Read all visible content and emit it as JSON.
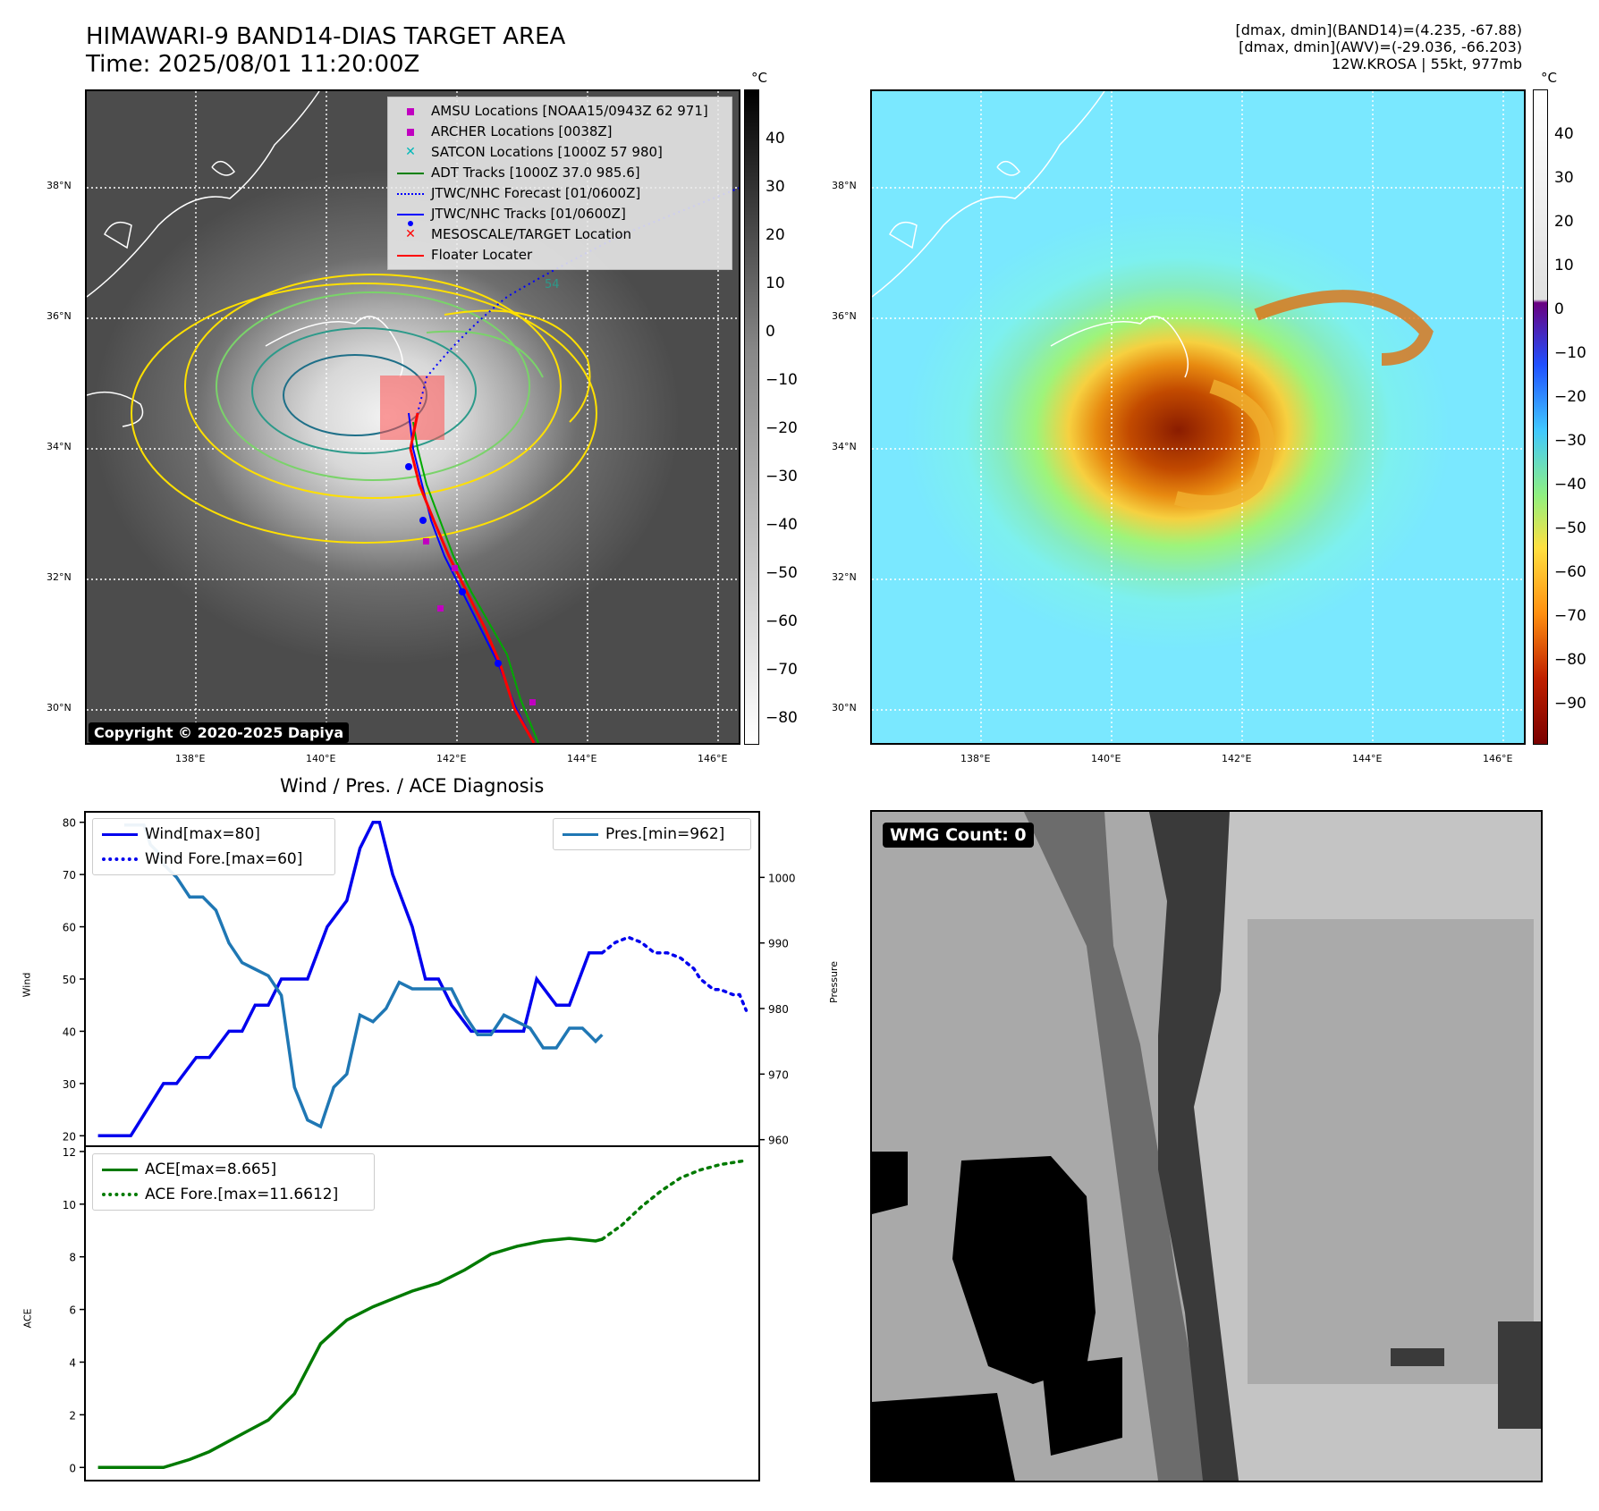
{
  "header": {
    "title_line1": "HIMAWARI-9 BAND14-DIAS TARGET AREA",
    "title_line2": "Time: 2025/08/01 11:20:00Z",
    "info_line1": "[dmax, dmin](BAND14)=(4.235, -67.88)",
    "info_line2": "[dmax, dmin](AWV)=(-29.036, -66.203)",
    "info_line3": "12W.KROSA | 55kt, 977mb"
  },
  "map": {
    "lon_ticks": [
      "138°E",
      "140°E",
      "142°E",
      "144°E",
      "146°E"
    ],
    "lat_ticks": [
      "38°N",
      "36°N",
      "34°N",
      "32°N",
      "30°N"
    ],
    "copyright": "Copyright © 2020-2025 Dapiya",
    "colorbar_unit": "°C",
    "colorbar1_ticks": [
      "40",
      "30",
      "20",
      "10",
      "0",
      "−10",
      "−20",
      "−30",
      "−40",
      "−50",
      "−60",
      "−70",
      "−80"
    ],
    "colorbar2_ticks": [
      "40",
      "30",
      "20",
      "10",
      "0",
      "−10",
      "−20",
      "−30",
      "−40",
      "−50",
      "−60",
      "−70",
      "−80",
      "−90"
    ],
    "contour_label": "54",
    "legend": [
      {
        "label": "AMSU Locations [NOAA15/0943Z 62 971]",
        "symbol": "square",
        "color": "#c000c0"
      },
      {
        "label": "ARCHER Locations [0038Z]",
        "symbol": "square",
        "color": "#c000c0"
      },
      {
        "label": "SATCON Locations [1000Z 57 980]",
        "symbol": "x",
        "color": "#00b8b8"
      },
      {
        "label": "ADT Tracks [1000Z 37.0 985.6]",
        "symbol": "line",
        "color": "#008000"
      },
      {
        "label": "JTWC/NHC Forecast [01/0600Z]",
        "symbol": "dotted",
        "color": "#0000ff"
      },
      {
        "label": "JTWC/NHC Tracks [01/0600Z]",
        "symbol": "line-dot",
        "color": "#0000ff"
      },
      {
        "label": "MESOSCALE/TARGET Location",
        "symbol": "x",
        "color": "#ff0000"
      },
      {
        "label": "Floater Locater",
        "symbol": "line",
        "color": "#ff0000"
      }
    ]
  },
  "diagnosis": {
    "title": "Wind / Pres. / ACE Diagnosis",
    "wind_ylabel": "Wind",
    "pres_ylabel": "Pressure",
    "ace_ylabel": "ACE",
    "wind_legend": [
      "Wind[max=80]",
      "Wind Fore.[max=60]"
    ],
    "pres_legend": "Pres.[min=962]",
    "ace_legend": [
      "ACE[max=8.665]",
      "ACE Fore.[max=11.6612]"
    ]
  },
  "wmg": {
    "label": "WMG Count: 0"
  },
  "colors": {
    "wind": "#0000ee",
    "pressure": "#1f77b4",
    "ace": "#007a00"
  },
  "chart_data": [
    {
      "type": "line",
      "ylabel": "Wind",
      "ylim": [
        18,
        82
      ],
      "yticks": [
        20,
        30,
        40,
        50,
        60,
        70,
        80
      ],
      "x": [
        0,
        1,
        2,
        3,
        4,
        5,
        6,
        7,
        8,
        9,
        10,
        11,
        12,
        13,
        14,
        15,
        16,
        17,
        18,
        19,
        20,
        21,
        22,
        23,
        24,
        25,
        26,
        27,
        28,
        29,
        30,
        31,
        32,
        33,
        34,
        35,
        36,
        37,
        38,
        39,
        40,
        41,
        42,
        43,
        44,
        45,
        46,
        47,
        48,
        49,
        50,
        51,
        52,
        53,
        54,
        55,
        56,
        57,
        58,
        59,
        60,
        61,
        62,
        63,
        64,
        65,
        66,
        67,
        68,
        69,
        70,
        71,
        72,
        73,
        74,
        75,
        76,
        77,
        78,
        79
      ],
      "series": [
        {
          "name": "Wind[max=80]",
          "style": "solid",
          "x": [
            0,
            5,
            10,
            12,
            15,
            17,
            20,
            22,
            24,
            26,
            28,
            30,
            32,
            35,
            38,
            40,
            42,
            43,
            45,
            48,
            50,
            52,
            54,
            57,
            60,
            62,
            65,
            67,
            70,
            72,
            75,
            77
          ],
          "values": [
            20,
            20,
            30,
            30,
            35,
            35,
            40,
            40,
            45,
            45,
            50,
            50,
            50,
            60,
            65,
            75,
            80,
            80,
            70,
            60,
            50,
            50,
            45,
            40,
            40,
            40,
            40,
            50,
            45,
            45,
            55,
            55
          ]
        },
        {
          "name": "Wind Fore.[max=60]",
          "style": "dotted",
          "x": [
            77,
            79,
            81,
            83,
            85,
            87,
            89,
            91,
            92,
            94,
            95,
            97,
            98,
            99
          ],
          "values": [
            55,
            57,
            58,
            57,
            55,
            55,
            54,
            52,
            50,
            48,
            48,
            47,
            47,
            44
          ]
        }
      ]
    },
    {
      "type": "line",
      "ylabel": "Pressure",
      "ylim": [
        959,
        1010
      ],
      "yticks": [
        960,
        970,
        980,
        990,
        1000
      ],
      "series": [
        {
          "name": "Pres.[min=962]",
          "style": "solid",
          "x": [
            4,
            5,
            6,
            7,
            8,
            9,
            10,
            12,
            14,
            16,
            18,
            20,
            22,
            24,
            26,
            28,
            30,
            32,
            34,
            36,
            38,
            40,
            42,
            44,
            46,
            48,
            50,
            52,
            54,
            56,
            58,
            60,
            62,
            64,
            66,
            68,
            70,
            72,
            74,
            75,
            76,
            77
          ],
          "values": [
            1008,
            1008,
            1008,
            1008,
            1005,
            1004,
            1002,
            1000,
            997,
            997,
            995,
            990,
            987,
            986,
            985,
            982,
            968,
            963,
            962,
            968,
            970,
            979,
            978,
            980,
            984,
            983,
            983,
            983,
            983,
            979,
            976,
            976,
            979,
            978,
            977,
            974,
            974,
            977,
            977,
            976,
            975,
            976
          ]
        }
      ]
    },
    {
      "type": "line",
      "ylabel": "ACE",
      "ylim": [
        -0.5,
        12.2
      ],
      "yticks": [
        0,
        2,
        4,
        6,
        8,
        10,
        12
      ],
      "series": [
        {
          "name": "ACE[max=8.665]",
          "style": "solid",
          "x": [
            0,
            10,
            14,
            17,
            20,
            23,
            26,
            30,
            34,
            38,
            42,
            45,
            48,
            52,
            56,
            60,
            64,
            68,
            72,
            76,
            77
          ],
          "values": [
            0,
            0,
            0.3,
            0.6,
            1.0,
            1.4,
            1.8,
            2.8,
            4.7,
            5.6,
            6.1,
            6.4,
            6.7,
            7.0,
            7.5,
            8.1,
            8.4,
            8.6,
            8.7,
            8.6,
            8.665
          ]
        },
        {
          "name": "ACE Fore.[max=11.6612]",
          "style": "dotted",
          "x": [
            77,
            80,
            83,
            86,
            89,
            92,
            95,
            98,
            99
          ],
          "values": [
            8.665,
            9.2,
            9.9,
            10.5,
            11.0,
            11.3,
            11.5,
            11.62,
            11.6612
          ]
        }
      ]
    }
  ]
}
